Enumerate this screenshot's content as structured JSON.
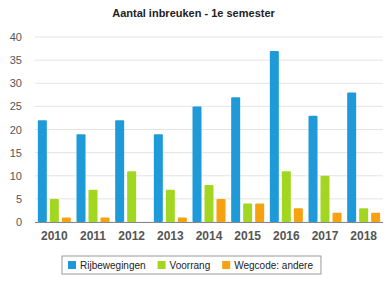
{
  "chart_data": {
    "type": "bar",
    "title": "Aantal inbreuken - 1e semester",
    "categories": [
      "2010",
      "2011",
      "2012",
      "2013",
      "2014",
      "2015",
      "2016",
      "2017",
      "2018"
    ],
    "series": [
      {
        "name": "Rijbewegingen",
        "color": "#1e9ad8",
        "values": [
          22,
          19,
          22,
          19,
          25,
          27,
          37,
          23,
          28
        ]
      },
      {
        "name": "Voorrang",
        "color": "#a2d620",
        "values": [
          5,
          7,
          11,
          7,
          8,
          4,
          11,
          10,
          3
        ]
      },
      {
        "name": "Wegcode: andere",
        "color": "#f6a10f",
        "values": [
          1,
          1,
          0,
          1,
          5,
          4,
          3,
          2,
          2
        ]
      }
    ],
    "ylim": [
      0,
      40
    ],
    "yticks": [
      0,
      5,
      10,
      15,
      20,
      25,
      30,
      35,
      40
    ],
    "grid": true,
    "legend": "bottom"
  }
}
